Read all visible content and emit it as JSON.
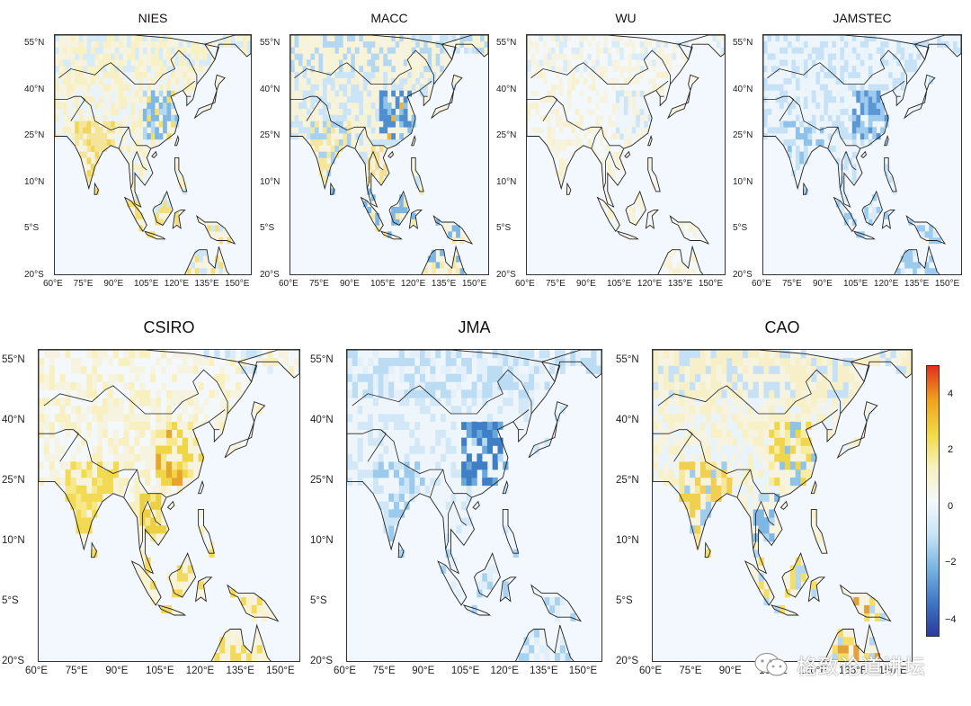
{
  "panels": [
    {
      "id": "nies",
      "title": "NIES",
      "scheme": "mixed_yellow"
    },
    {
      "id": "macc",
      "title": "MACC",
      "scheme": "blue_east"
    },
    {
      "id": "wu",
      "title": "WU",
      "scheme": "pale"
    },
    {
      "id": "jamstec",
      "title": "JAMSTEC",
      "scheme": "blue_light"
    },
    {
      "id": "csiro",
      "title": "CSIRO",
      "scheme": "yellow_strong"
    },
    {
      "id": "jma",
      "title": "JMA",
      "scheme": "blue_strong"
    },
    {
      "id": "cao",
      "title": "CAO",
      "scheme": "mixed_cao"
    }
  ],
  "axes": {
    "lat_labels": [
      "55°N",
      "40°N",
      "25°N",
      "10°N",
      "5°S",
      "20°S"
    ],
    "lon_labels": [
      "60°E",
      "75°E",
      "90°E",
      "105°E",
      "120°E",
      "135°E",
      "150°E"
    ],
    "lat_range": [
      -20,
      58
    ],
    "lon_range": [
      60,
      158
    ]
  },
  "colorbar": {
    "ticks": [
      "4",
      "2",
      "0",
      "−2",
      "−4"
    ],
    "range": [
      -5,
      5
    ],
    "colors": [
      "#2b3a9c",
      "#3f78c4",
      "#79b4e3",
      "#c8e4f6",
      "#f4f9fc",
      "#f7f1be",
      "#f1d944",
      "#f0a21d",
      "#e0301e"
    ]
  },
  "watermark": {
    "text": "格致论道讲坛",
    "icon": "wechat-icon"
  }
}
